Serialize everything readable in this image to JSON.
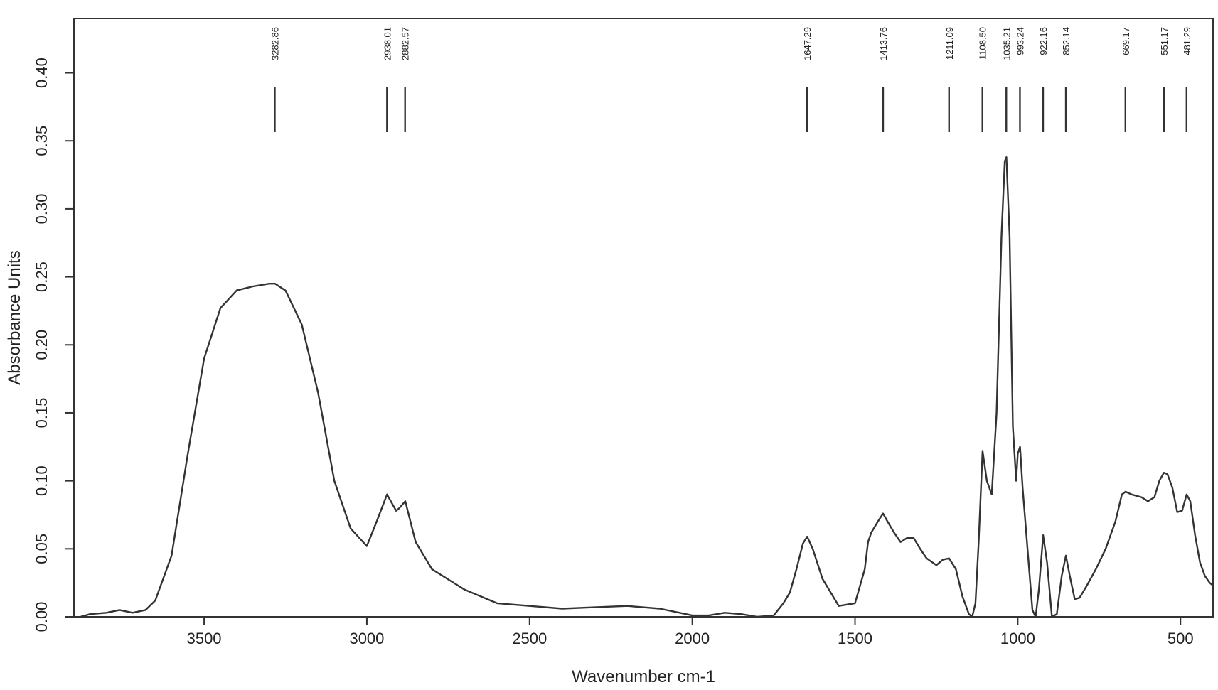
{
  "chart_data": {
    "type": "line",
    "title": "",
    "xlabel": "Wavenumber cm-1",
    "ylabel": "Absorbance Units",
    "xlim": [
      3900,
      400
    ],
    "xaxis_reversed": true,
    "ylim": [
      0,
      0.44
    ],
    "grid": false,
    "legend": "none",
    "line_color": "#333333",
    "x_ticks": [
      3500,
      3000,
      2500,
      2000,
      1500,
      1000,
      500
    ],
    "x_tick_labels": [
      "3500",
      "3000",
      "2500",
      "2000",
      "1500",
      "1000",
      "500"
    ],
    "y_ticks": [
      0,
      0.05,
      0.1,
      0.15,
      0.2,
      0.25,
      0.3,
      0.35,
      0.4
    ],
    "y_tick_labels": [
      "0.00",
      "0.05",
      "0.10",
      "0.15",
      "0.20",
      "0.25",
      "0.30",
      "0.35",
      "0.40"
    ],
    "peak_labels": [
      {
        "wavenumber": 3282.86,
        "label": "3282.86"
      },
      {
        "wavenumber": 2938.01,
        "label": "2938.01"
      },
      {
        "wavenumber": 2882.57,
        "label": "2882.57"
      },
      {
        "wavenumber": 1647.29,
        "label": "1647.29"
      },
      {
        "wavenumber": 1413.76,
        "label": "1413.76"
      },
      {
        "wavenumber": 1211.09,
        "label": "1211.09"
      },
      {
        "wavenumber": 1108.5,
        "label": "1108.50"
      },
      {
        "wavenumber": 1035.21,
        "label": "1035.21"
      },
      {
        "wavenumber": 993.24,
        "label": "993.24"
      },
      {
        "wavenumber": 922.16,
        "label": "922.16"
      },
      {
        "wavenumber": 852.14,
        "label": "852.14"
      },
      {
        "wavenumber": 669.17,
        "label": "669.17"
      },
      {
        "wavenumber": 551.17,
        "label": "551.17"
      },
      {
        "wavenumber": 481.29,
        "label": "481.29"
      }
    ],
    "series": [
      {
        "x": [
          3880,
          3850,
          3800,
          3760,
          3720,
          3680,
          3650,
          3600,
          3550,
          3500,
          3450,
          3400,
          3350,
          3300,
          3282,
          3250,
          3200,
          3150,
          3100,
          3050,
          3000,
          2970,
          2938,
          2910,
          2900,
          2882,
          2850,
          2800,
          2700,
          2600,
          2500,
          2400,
          2300,
          2200,
          2100,
          2000,
          1950,
          1900,
          1850,
          1800,
          1750,
          1720,
          1700,
          1680,
          1660,
          1647,
          1630,
          1600,
          1550,
          1500,
          1470,
          1460,
          1450,
          1430,
          1414,
          1400,
          1380,
          1360,
          1340,
          1320,
          1300,
          1280,
          1250,
          1230,
          1211,
          1190,
          1170,
          1150,
          1140,
          1130,
          1120,
          1108,
          1095,
          1080,
          1065,
          1050,
          1040,
          1035,
          1025,
          1015,
          1005,
          1000,
          993,
          985,
          970,
          955,
          945,
          935,
          922,
          910,
          895,
          880,
          865,
          852,
          840,
          825,
          810,
          790,
          760,
          730,
          700,
          680,
          669,
          650,
          620,
          600,
          580,
          565,
          551,
          540,
          525,
          510,
          495,
          481,
          470,
          455,
          440,
          425,
          410,
          400
        ],
        "y": [
          0.0,
          0.002,
          0.003,
          0.005,
          0.003,
          0.005,
          0.012,
          0.045,
          0.12,
          0.19,
          0.227,
          0.24,
          0.243,
          0.245,
          0.245,
          0.24,
          0.215,
          0.165,
          0.1,
          0.065,
          0.052,
          0.07,
          0.09,
          0.078,
          0.08,
          0.085,
          0.055,
          0.035,
          0.02,
          0.01,
          0.008,
          0.006,
          0.007,
          0.008,
          0.006,
          0.001,
          0.001,
          0.003,
          0.002,
          0.0,
          0.001,
          0.01,
          0.018,
          0.035,
          0.054,
          0.059,
          0.05,
          0.028,
          0.008,
          0.01,
          0.035,
          0.055,
          0.062,
          0.07,
          0.076,
          0.07,
          0.062,
          0.055,
          0.058,
          0.058,
          0.05,
          0.043,
          0.038,
          0.042,
          0.043,
          0.035,
          0.015,
          0.002,
          0.0,
          0.01,
          0.055,
          0.122,
          0.1,
          0.09,
          0.15,
          0.28,
          0.335,
          0.338,
          0.28,
          0.14,
          0.1,
          0.12,
          0.125,
          0.095,
          0.05,
          0.005,
          0.0,
          0.02,
          0.06,
          0.04,
          0.0,
          0.002,
          0.03,
          0.045,
          0.03,
          0.013,
          0.014,
          0.022,
          0.035,
          0.05,
          0.07,
          0.09,
          0.092,
          0.09,
          0.088,
          0.085,
          0.088,
          0.1,
          0.106,
          0.105,
          0.095,
          0.077,
          0.078,
          0.09,
          0.085,
          0.06,
          0.04,
          0.03,
          0.025,
          0.023
        ]
      }
    ]
  }
}
